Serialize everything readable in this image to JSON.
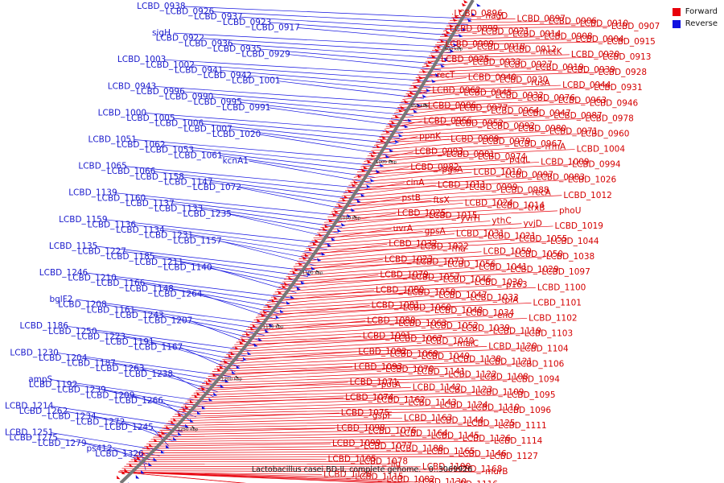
{
  "caption": "Lactobacillus casei BD-II, complete genome. - 0..3069926",
  "legend": [
    {
      "label": "Forward",
      "color": "#e8000b"
    },
    {
      "label": "Reverse",
      "color": "#1010e0"
    }
  ],
  "colors": {
    "forward": "#e8000b",
    "reverse": "#1010e0",
    "backbone": "#777777"
  },
  "ticks": [
    "900 kbp",
    "950 kbp",
    "1000 kbp",
    "1050 kbp",
    "1100 kbp",
    "1150 kbp",
    "1200 kbp",
    "1250 kbp"
  ],
  "reverse_labels": [
    "LCBD_0938",
    "LCBD_0926",
    "LCBD_0937",
    "LCBD_0923",
    "LCBD_0917",
    "sigH",
    "LCBD_0922",
    "LCBD_0936",
    "LCBD_0935",
    "LCBD_0929",
    "LCBD_1003",
    "LCBD_1002",
    "LCBD_0941",
    "LCBD_0942",
    "LCBD_1001",
    "LCBD_0943",
    "LCBD_0996",
    "LCBD_0990",
    "LCBD_0995",
    "LCBD_0991",
    "LCBD_1000",
    "LCBD_1005",
    "LCBD_1006",
    "LCBD_1007",
    "LCBD_1020",
    "LCBD_1051",
    "LCBD_1062",
    "LCBD_1053",
    "LCBD_1061",
    "kcnA1",
    "LCBD_1065",
    "LCBD_1066",
    "LCBD_1158",
    "LCBD_1147",
    "LCBD_1072",
    "LCBD_1139",
    "LCBD_1160",
    "LCBD_1137",
    "LCBD_1133",
    "LCBD_1235",
    "LCBD_1159",
    "LCBD_1136",
    "LCBD_1134",
    "LCBD_1231",
    "LCBD_1157",
    "LCBD_1135",
    "LCBD_1227",
    "LCBD_1185",
    "LCBD_1211",
    "LCBD_1140",
    "LCBD_1246",
    "LCBD_1210",
    "LCBD_1166",
    "LCBD_1148",
    "LCBD_1264",
    "bglF2",
    "LCBD_1208",
    "LCBD_1161",
    "LCBD_1243",
    "LCBD_1207",
    "LCBD_1186",
    "LCBD_1250",
    "LCBD_1223",
    "LCBD_1191",
    "LCBD_1167",
    "LCBD_1230",
    "LCBD_1204",
    "LCBD_1187",
    "LCBD_1263",
    "LCBD_1238",
    "ampS",
    "LCBD_1192",
    "LCBD_1239",
    "LCBD_1209",
    "LCBD_1266",
    "LCBD_1214",
    "LCBD_1262",
    "LCBD_1234",
    "LCBD_1272",
    "LCBD_1245",
    "LCBD_1251",
    "LCBD_1275",
    "LCBD_1279",
    "ps412",
    "LCBD_1326"
  ],
  "forward_labels": [
    "LCBD_0896",
    "nagD",
    "LCBD_0897",
    "LCBD_0906",
    "LCBD_0910",
    "LCBD_0907",
    "LCBD_0899",
    "LCBD_0921",
    "LCBD_0914",
    "LCBD_0908",
    "LCBD_0904",
    "LCBD_0915",
    "LCBD_0909",
    "LCBD_0918",
    "LCBD_0912",
    "metK",
    "LCBD_0920",
    "LCBD_0913",
    "LCBD_0925",
    "LCBD_0933",
    "LCBD_0927",
    "LCBD_0919",
    "LCBD_0939",
    "LCBD_0928",
    "recT",
    "LCBD_0940",
    "LCBD_0930",
    "rusA",
    "LCBD_0944",
    "LCBD_0931",
    "LCBD_0962",
    "LCBD_0945",
    "LCBD_0932",
    "LCBD_0976",
    "LCBD_0963",
    "LCBD_0946",
    "LCBD_0986",
    "LCBD_0977",
    "LCBD_0964",
    "LCBD_0947",
    "LCBD_0987",
    "LCBD_0978",
    "LCBD_0966",
    "LCBD_0952",
    "LCBD_0992",
    "LCBD_0980",
    "LCBD_0971",
    "LCBD_0960",
    "ppnK",
    "LCBD_0989",
    "LCBD_0979",
    "LCBD_0967",
    "rrmA",
    "LCBD_1004",
    "LCBD_0993",
    "LCBD_0981",
    "LCBD_0974",
    "pqqL",
    "LCBD_1009",
    "LCBD_0994",
    "LCBD_0982",
    "pgsA",
    "LCBD_1010",
    "LCBD_0997",
    "LCBD_0983",
    "LCBD_1026",
    "cinA",
    "LCBD_1011",
    "LCBD_0999",
    "LCBD_0988",
    "recA",
    "LCBD_1012",
    "pstB",
    "ftsX",
    "LCBD_1024",
    "LCBD_1014",
    "trxB",
    "phoU",
    "LCBD_1025",
    "LCBD_1015",
    "yvrH",
    "ythC",
    "yvjD",
    "LCBD_1019",
    "uvrA",
    "gpsA",
    "LCBD_1031",
    "LCBD_1021",
    "LCBD_1055",
    "LCBD_1044",
    "LCBD_1032",
    "LCBD_1022",
    "rha",
    "LCBD_1059",
    "LCBD_1050",
    "LCBD_1038",
    "LCBD_1023",
    "LCBD_1073",
    "LCBD_1056",
    "LCBD_1041",
    "LCBD_1029",
    "LCBD_1097",
    "LCBD_1079",
    "LCBD_1057",
    "LCBD_1046",
    "LCBD_1030",
    "p163",
    "LCBD_1100",
    "LCBD_1080",
    "LCBD_1058",
    "LCBD_1047",
    "LCBD_1033",
    "tpiA",
    "LCBD_1101",
    "LCBD_1081",
    "LCBD_1060",
    "LCBD_1048",
    "LCBD_1034",
    "eno",
    "LCBD_1102",
    "LCBD_1088",
    "LCBD_1063",
    "LCBD_1052",
    "LCBD_1039",
    "LCBD_1119",
    "LCBD_1103",
    "LCBD_1091",
    "LCBD_1067",
    "LCBD_1040",
    "malC",
    "LCBD_1120",
    "LCBD_1104",
    "LCBD_1092",
    "LCBD_1069",
    "LCBD_1049",
    "LCBD_1138",
    "LCBD_1121",
    "LCBD_1106",
    "LCBD_1093",
    "LCBD_1070",
    "LCBD_1141",
    "LCBD_1122",
    "LCBD_1108",
    "LCBD_1094",
    "LCBD_1071",
    "potA",
    "LCBD_1142",
    "LCBD_1123",
    "LCBD_1109",
    "LCBD_1095",
    "LCBD_1074",
    "LCBD_1162",
    "LCBD_1143",
    "LCBD_1124",
    "LCBD_1110",
    "LCBD_1096",
    "LCBD_1075",
    "gspF",
    "LCBD_1163",
    "LCBD_1144",
    "LCBD_1125",
    "LCBD_1111",
    "LCBD_1098",
    "LCBD_1076",
    "LCBD_1164",
    "LCBD_1145",
    "LCBD_1126",
    "LCBD_1114",
    "LCBD_1099",
    "LCBD_1077",
    "LCBD_1188",
    "LCBD_1165",
    "LCBD_1146",
    "LCBD_1127",
    "LCBD_1105",
    "LCBD_1078",
    "lig",
    "LCBD_1190",
    "LCBD_1168",
    "murB",
    "LCBD_1128",
    "LCBD_1115",
    "LCBD_1082",
    "LCBD_1130",
    "LCBD_1116",
    "LCBD_1085",
    "LCBD_1131",
    "LCBD_1117"
  ]
}
